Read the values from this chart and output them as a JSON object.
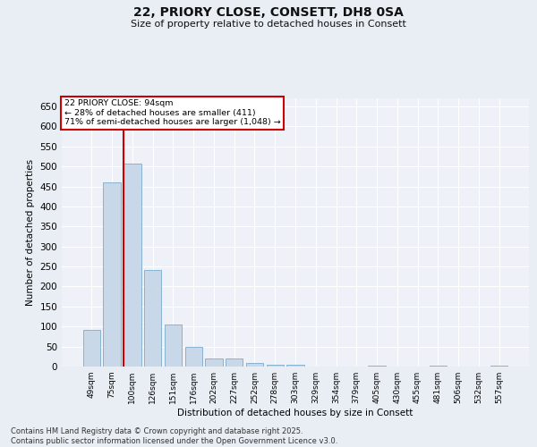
{
  "title": "22, PRIORY CLOSE, CONSETT, DH8 0SA",
  "subtitle": "Size of property relative to detached houses in Consett",
  "xlabel": "Distribution of detached houses by size in Consett",
  "ylabel": "Number of detached properties",
  "categories": [
    "49sqm",
    "75sqm",
    "100sqm",
    "126sqm",
    "151sqm",
    "176sqm",
    "202sqm",
    "227sqm",
    "252sqm",
    "278sqm",
    "303sqm",
    "329sqm",
    "354sqm",
    "379sqm",
    "405sqm",
    "430sqm",
    "455sqm",
    "481sqm",
    "506sqm",
    "532sqm",
    "557sqm"
  ],
  "values": [
    91,
    460,
    507,
    241,
    104,
    49,
    20,
    19,
    10,
    5,
    4,
    0,
    0,
    0,
    3,
    0,
    0,
    2,
    0,
    1,
    2
  ],
  "bar_color": "#c8d8e8",
  "bar_edge_color": "#7aaBcc",
  "vline_color": "#cc0000",
  "annotation_text": "22 PRIORY CLOSE: 94sqm\n← 28% of detached houses are smaller (411)\n71% of semi-detached houses are larger (1,048) →",
  "annotation_box_color": "#ffffff",
  "annotation_box_edge": "#cc0000",
  "ylim": [
    0,
    670
  ],
  "yticks": [
    0,
    50,
    100,
    150,
    200,
    250,
    300,
    350,
    400,
    450,
    500,
    550,
    600,
    650
  ],
  "footer": "Contains HM Land Registry data © Crown copyright and database right 2025.\nContains public sector information licensed under the Open Government Licence v3.0.",
  "background_color": "#e8eef4",
  "plot_background": "#eef2f8"
}
